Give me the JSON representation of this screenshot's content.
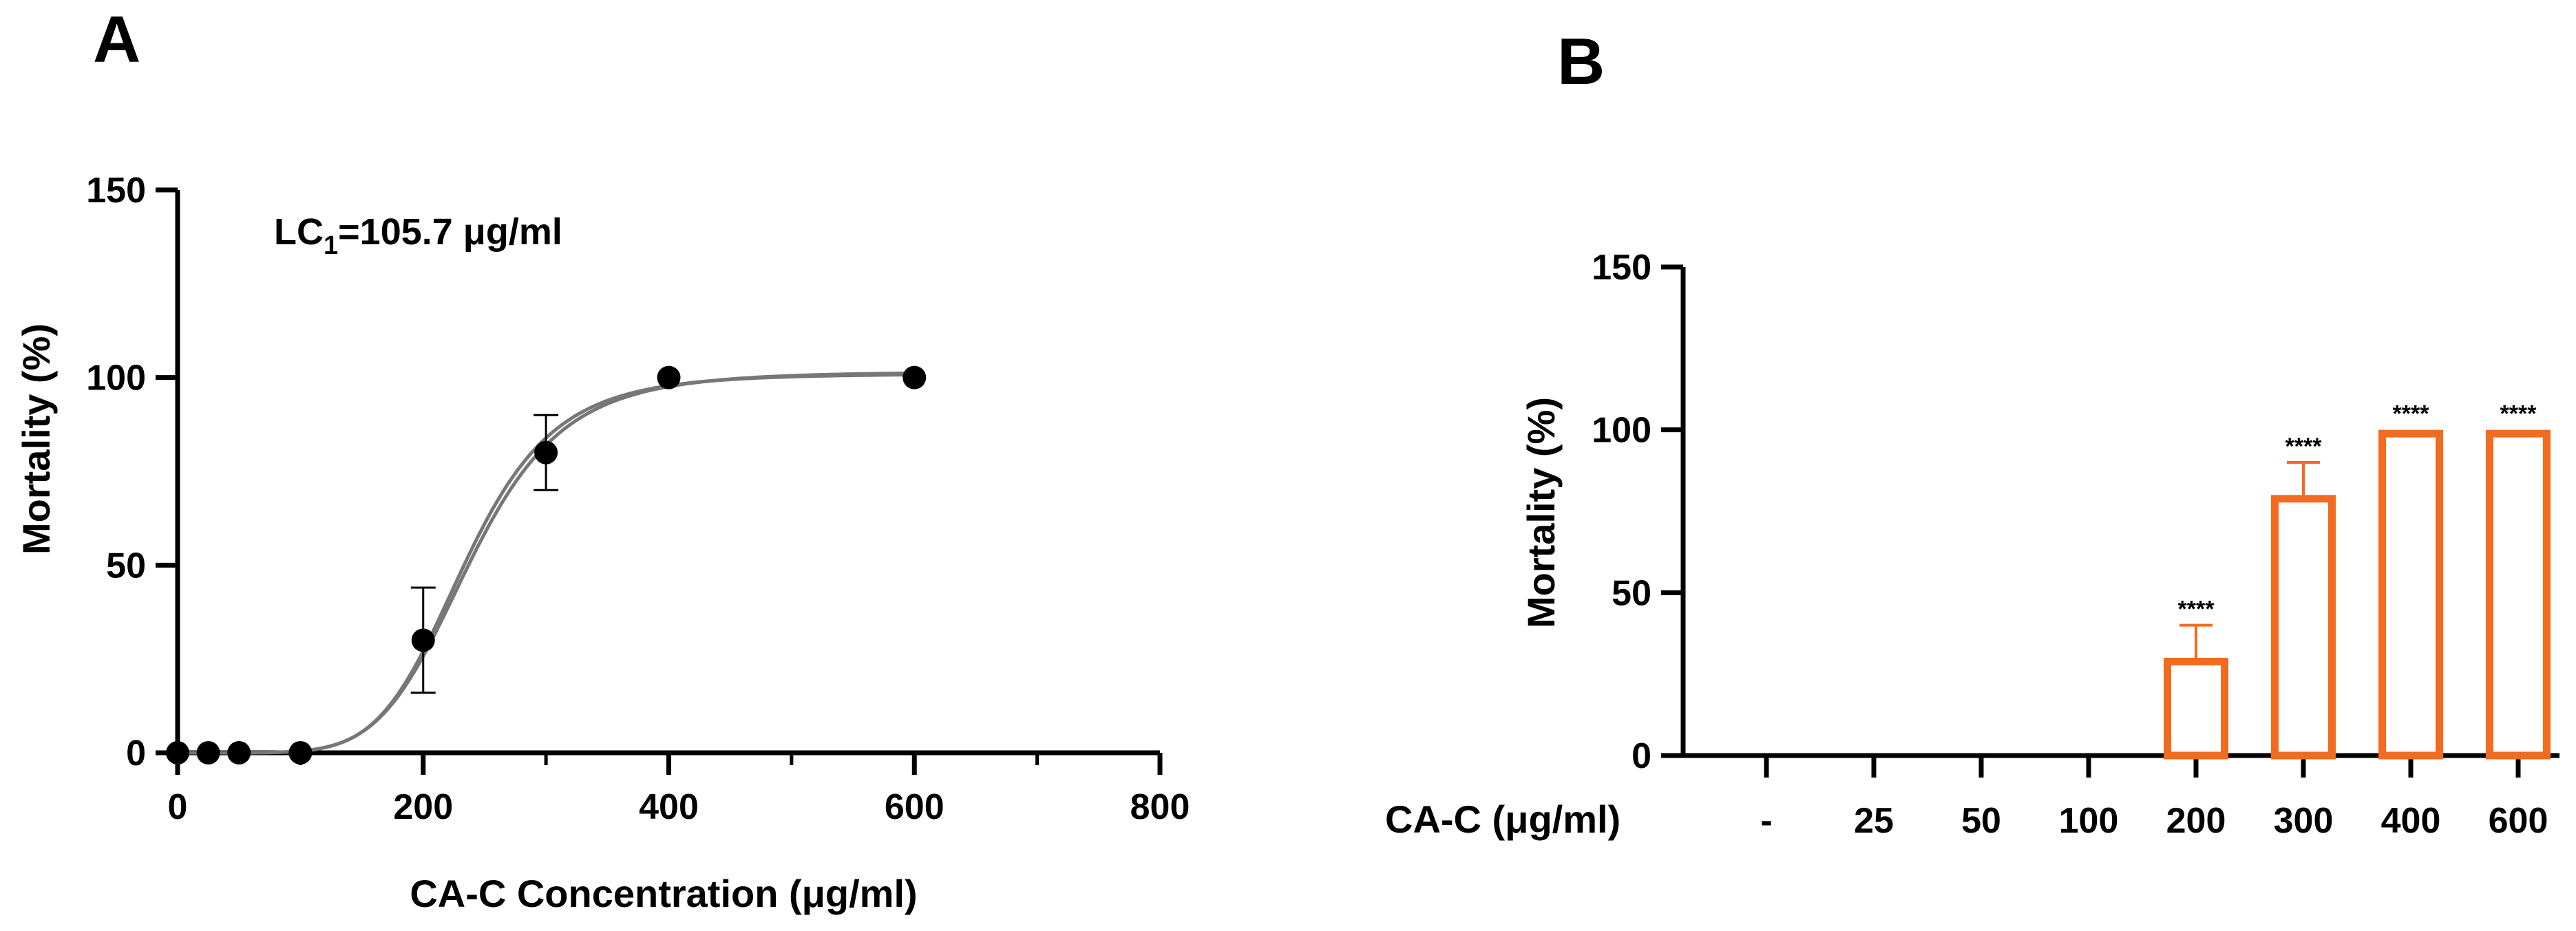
{
  "chart_data": [
    {
      "panel": "A",
      "type": "scatter",
      "xlabel": "CA-C Concentration (μg/ml)",
      "ylabel": "Mortality (%)",
      "xlim": [
        0,
        800
      ],
      "ylim": [
        0,
        150
      ],
      "xticks": [
        "0",
        "200",
        "400",
        "600",
        "800"
      ],
      "yticks": [
        "0",
        "50",
        "100",
        "150"
      ],
      "annotation": {
        "prefix": "LC",
        "subscript": "1",
        "suffix": "=105.7 μg/ml"
      },
      "points": [
        {
          "x": 0,
          "y": 0
        },
        {
          "x": 25,
          "y": 0
        },
        {
          "x": 50,
          "y": 0
        },
        {
          "x": 100,
          "y": 0
        },
        {
          "x": 200,
          "y": 30,
          "err": 14
        },
        {
          "x": 300,
          "y": 80,
          "err": 10
        },
        {
          "x": 400,
          "y": 100
        },
        {
          "x": 600,
          "y": 100
        }
      ],
      "fit": [
        {
          "ec50": 234,
          "hill": 6.4,
          "top": 101
        },
        {
          "ec50": 238,
          "hill": 6.2,
          "top": 101.5
        }
      ],
      "grid": false,
      "colors": {
        "points": "#000000",
        "fit": "#777777"
      }
    },
    {
      "panel": "B",
      "type": "bar",
      "xlabel": "CA-C (μg/ml)",
      "ylabel": "Mortality (%)",
      "ylim": [
        0,
        150
      ],
      "yticks": [
        "0",
        "50",
        "100",
        "150"
      ],
      "categories": [
        "-",
        "25",
        "50",
        "100",
        "200",
        "300",
        "400",
        "600"
      ],
      "values": [
        0,
        0,
        0,
        0,
        30,
        80,
        100,
        100
      ],
      "errors": [
        0,
        0,
        0,
        0,
        10,
        10,
        0,
        0
      ],
      "significance": [
        "",
        "",
        "",
        "",
        "****",
        "****",
        "****",
        "****"
      ],
      "grid": false,
      "colors": {
        "bars": "#f26b21"
      }
    }
  ]
}
